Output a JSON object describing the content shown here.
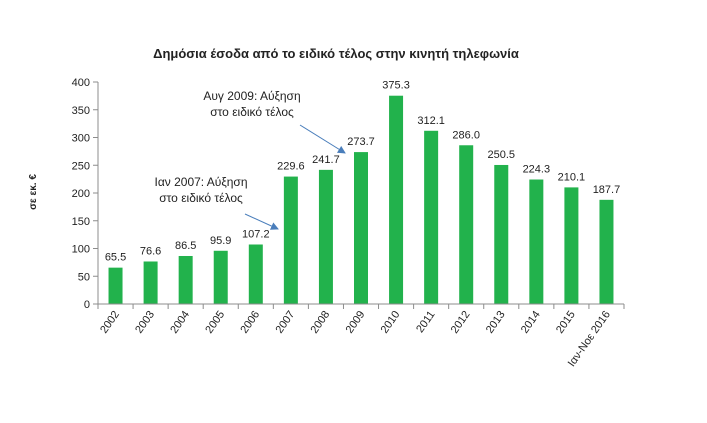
{
  "chart_data": {
    "type": "bar",
    "title": "Δημόσια έσοδα από το ειδικό τέλος στην κινητή τηλεφωνία",
    "ylabel": "σε εκ. €",
    "xlabel": "",
    "ylim": [
      0,
      400
    ],
    "yticks": [
      0,
      50,
      100,
      150,
      200,
      250,
      300,
      350,
      400
    ],
    "bar_color": "#22b24c",
    "grid": false,
    "legend": "none",
    "categories": [
      "2002",
      "2003",
      "2004",
      "2005",
      "2006",
      "2007",
      "2008",
      "2009",
      "2010",
      "2011",
      "2012",
      "2013",
      "2014",
      "2015",
      "Ιαν-Νοε 2016"
    ],
    "values": [
      65.5,
      76.6,
      86.5,
      95.9,
      107.2,
      229.6,
      241.7,
      273.7,
      375.3,
      312.1,
      286.0,
      250.5,
      224.3,
      210.1,
      187.7
    ],
    "value_labels": [
      "65.5",
      "76.6",
      "86.5",
      "95.9",
      "107.2",
      "229.6",
      "241.7",
      "273.7",
      "375.3",
      "312.1",
      "286.0",
      "250.5",
      "224.3",
      "210.1",
      "187.7"
    ],
    "annotations": [
      {
        "lines": [
          "Ιαν 2007: Αύξηση",
          "στο ειδικό τέλος"
        ],
        "target_category": "2007"
      },
      {
        "lines": [
          "Αυγ 2009:  Αύξηση",
          "στο ειδικό τέλος"
        ],
        "target_category": "2009"
      }
    ]
  }
}
